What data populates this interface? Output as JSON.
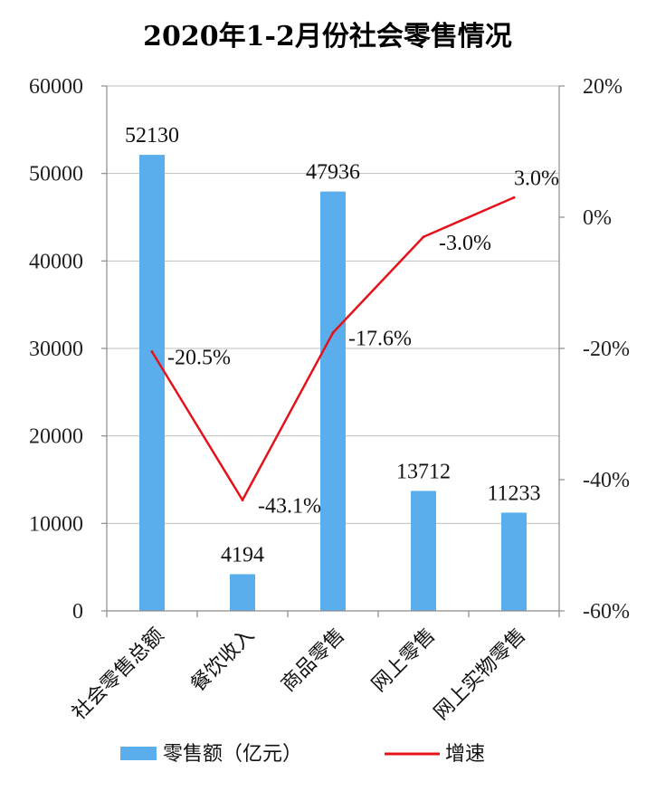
{
  "chart_data": {
    "type": "bar",
    "title": "2020年1-2月份社会零售情况",
    "categories": [
      "社会零售总额",
      "餐饮收入",
      "商品零售",
      "网上零售",
      "网上实物零售"
    ],
    "series": [
      {
        "name": "零售额（亿元）",
        "type": "bar",
        "axis": "left",
        "color": "#5aaeeb",
        "values": [
          52130,
          4194,
          47936,
          13712,
          11233
        ],
        "labels": [
          "52130",
          "4194",
          "47936",
          "13712",
          "11233"
        ]
      },
      {
        "name": "增速",
        "type": "line",
        "axis": "right",
        "color": "#e4131b",
        "values": [
          -20.5,
          -43.1,
          -17.6,
          -3.0,
          3.0
        ],
        "labels": [
          "-20.5%",
          "-43.1%",
          "-17.6%",
          "-3.0%",
          "3.0%"
        ]
      }
    ],
    "y_left": {
      "min": 0,
      "max": 60000,
      "ticks": [
        0,
        10000,
        20000,
        30000,
        40000,
        50000,
        60000
      ],
      "tick_labels": [
        "0",
        "10000",
        "20000",
        "30000",
        "40000",
        "50000",
        "60000"
      ]
    },
    "y_right": {
      "min": -60,
      "max": 20,
      "unit": "%",
      "ticks": [
        -60,
        -40,
        -20,
        0,
        20
      ],
      "tick_labels": [
        "-60%",
        "-40%",
        "-20%",
        "0%",
        "20%"
      ]
    },
    "grid": true,
    "legend": "bottom"
  }
}
